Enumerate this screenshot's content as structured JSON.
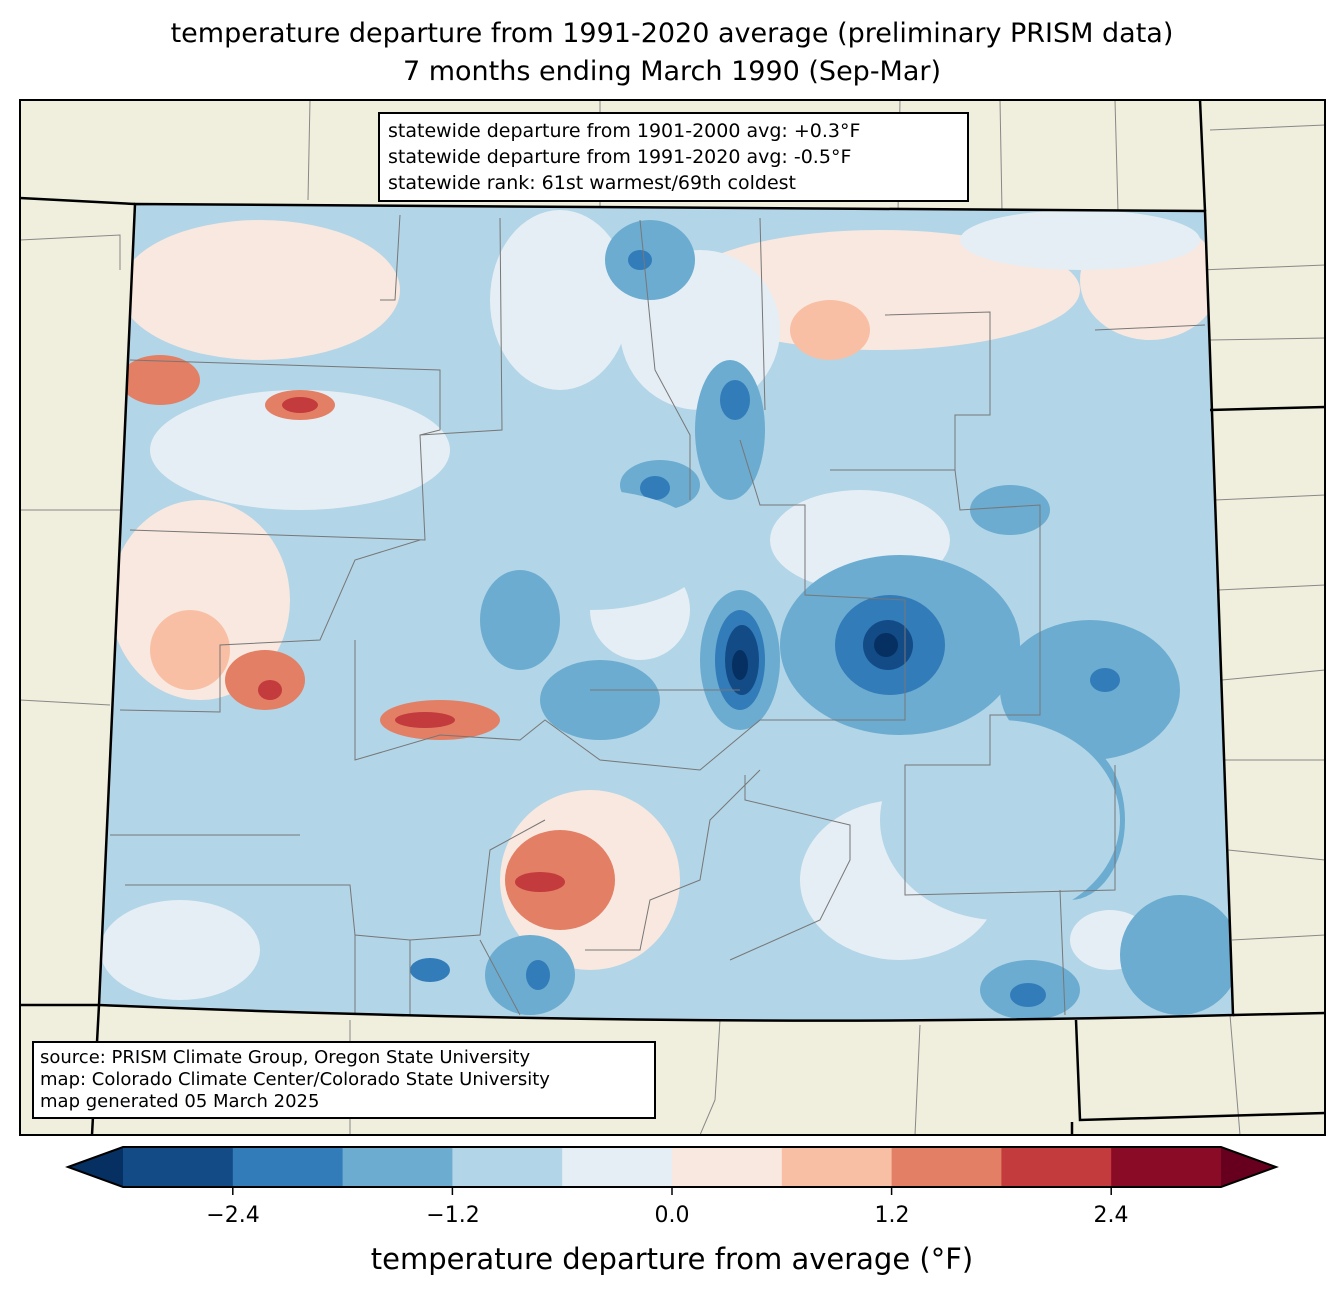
{
  "title": {
    "line1": "temperature departure from 1991-2020 average (preliminary PRISM data)",
    "line2": "7 months ending March 1990 (Sep-Mar)"
  },
  "stats": {
    "line1": "statewide departure from 1901-2000 avg: +0.3°F",
    "line2": "statewide departure from 1991-2020 avg: -0.5°F",
    "line3": "statewide rank: 61st warmest/69th coldest"
  },
  "source": {
    "line1": "source: PRISM Climate Group, Oregon State University",
    "line2": "map: Colorado Climate Center/Colorado State University",
    "line3": "map generated 05 March 2025"
  },
  "colors": {
    "land": "#f0eedc",
    "levels": [
      "#053061",
      "#134b87",
      "#327cb9",
      "#6bacd0",
      "#b2d5e7",
      "#e5eef4",
      "#f9e8df",
      "#f8bfa4",
      "#e27f64",
      "#c33b3d",
      "#8a0b25",
      "#67001f"
    ]
  },
  "chart_data": {
    "type": "heatmap",
    "region": "Colorado",
    "colorbar": {
      "label": "temperature departure from average (°F)",
      "boundaries": [
        -3.0,
        -2.4,
        -1.8,
        -1.2,
        -0.6,
        0.0,
        0.6,
        1.2,
        1.8,
        2.4,
        3.0
      ],
      "ticks": [
        "−2.4",
        "−1.2",
        "0.0",
        "1.2",
        "2.4"
      ],
      "extend": "both"
    }
  }
}
